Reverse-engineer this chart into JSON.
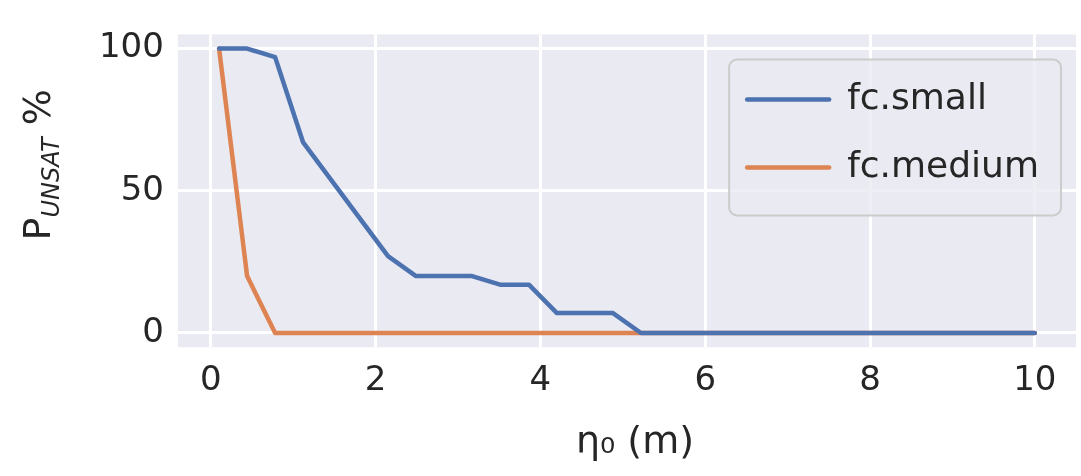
{
  "chart_data": {
    "type": "line",
    "xlabel": "η₀ (m)",
    "ylabel": "P$_{UNSAT}$ %",
    "xlim": [
      -0.4,
      10.5
    ],
    "ylim": [
      -5,
      105
    ],
    "xticks": [
      0,
      2,
      4,
      6,
      8,
      10
    ],
    "yticks": [
      0,
      50,
      100
    ],
    "grid": true,
    "legend": "top right",
    "series": [
      {
        "name": "fc.small",
        "color": "#4c72b0",
        "x": [
          0.1,
          0.44,
          0.78,
          1.12,
          2.15,
          2.49,
          3.17,
          3.51,
          3.86,
          4.2,
          4.88,
          5.22,
          10
        ],
        "values": [
          100,
          100,
          97,
          67,
          27,
          20,
          20,
          17,
          17,
          7,
          7,
          0,
          0
        ]
      },
      {
        "name": "fc.medium",
        "color": "#dd8452",
        "x": [
          0.1,
          0.44,
          0.78,
          10
        ],
        "values": [
          100,
          20,
          0,
          0
        ]
      }
    ]
  }
}
